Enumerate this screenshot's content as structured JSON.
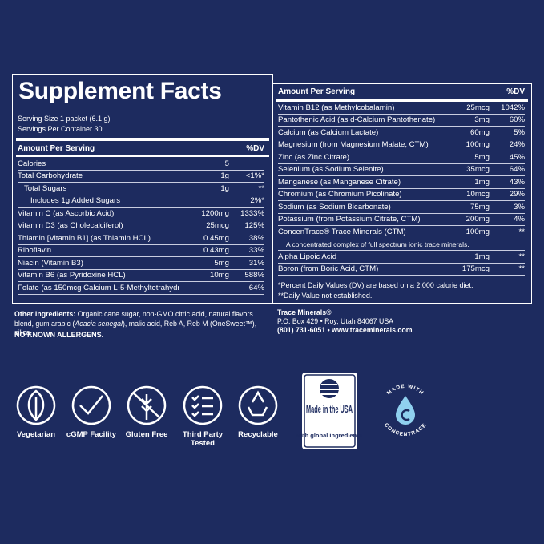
{
  "left": {
    "title": "Supplement Facts",
    "serving_size": "Serving Size 1 packet (6.1 g)",
    "servings": "Servings Per Container 30",
    "header": {
      "amount": "Amount Per Serving",
      "dv": "%DV"
    },
    "rows": [
      {
        "name": "Calories",
        "amount": "5"
      },
      {
        "name": "Total Carbohydrate",
        "amount": "1g",
        "dv": "<1%*"
      },
      {
        "name": "Total Sugars",
        "amount": "1g",
        "dv": "**"
      },
      {
        "name": "Includes 1g Added Sugars",
        "dv": "2%*"
      },
      {
        "name": "Vitamin C (as Ascorbic Acid)",
        "amount": "1200mg",
        "dv": "1333%"
      },
      {
        "name": "Vitamin D3 (as Cholecalciferol)",
        "amount": "25mcg",
        "dv": "125%"
      },
      {
        "name": "Thiamin [Vitamin B1] (as Thiamin HCL)",
        "amount": "0.45mg",
        "dv": "38%"
      },
      {
        "name": "Riboflavin",
        "amount": "0.43mg",
        "dv": "33%"
      },
      {
        "name": "Niacin (Vitamin B3)",
        "amount": "5mg",
        "dv": "31%"
      },
      {
        "name": "Vitamin B6 (as Pyridoxine HCL)",
        "amount": "10mg",
        "dv": "588%"
      },
      {
        "name": "Folate (as 150mcg Calcium L-5-Methyltetrahydrofolate) 255mcg DFE",
        "dv": "64%"
      }
    ]
  },
  "right": {
    "header": {
      "amount": "Amount Per Serving",
      "dv": "%DV"
    },
    "rows": [
      {
        "name": "Vitamin B12 (as Methylcobalamin)",
        "amount": "25mcg",
        "dv": "1042%"
      },
      {
        "name": "Pantothenic Acid (as d-Calcium Pantothenate)",
        "amount": "3mg",
        "dv": "60%"
      },
      {
        "name": "Calcium (as Calcium Lactate)",
        "amount": "60mg",
        "dv": "5%"
      },
      {
        "name": "Magnesium (from Magnesium Malate, CTM)",
        "amount": "100mg",
        "dv": "24%"
      },
      {
        "name": "Zinc (as Zinc Citrate)",
        "amount": "5mg",
        "dv": "45%"
      },
      {
        "name": "Selenium (as Sodium Selenite)",
        "amount": "35mcg",
        "dv": "64%"
      },
      {
        "name": "Manganese (as Manganese Citrate)",
        "amount": "1mg",
        "dv": "43%"
      },
      {
        "name": "Chromium (as Chromium Picolinate)",
        "amount": "10mcg",
        "dv": "29%"
      },
      {
        "name": "Sodium (as Sodium Bicarbonate)",
        "amount": "75mg",
        "dv": "3%"
      },
      {
        "name": "Potassium (from Potassium Citrate, CTM)",
        "amount": "200mg",
        "dv": "4%"
      },
      {
        "name": "ConcenTrace® Trace Minerals (CTM)",
        "amount": "100mg",
        "dv": "**",
        "note": "A concentrated complex of full spectrum ionic trace minerals."
      },
      {
        "name": "Alpha Lipoic Acid",
        "amount": "1mg",
        "dv": "**"
      },
      {
        "name": "Boron (from Boric Acid, CTM)",
        "amount": "175mcg",
        "dv": "**"
      }
    ],
    "footnotes": [
      "*Percent Daily Values (DV) are based on a 2,000 calorie diet.",
      "**Daily Value not established."
    ]
  },
  "ingredients": {
    "label": "Other ingredients:",
    "text": "Organic cane sugar, non-GMO citric acid, natural flavors blend, gum arabic (",
    "italic": "Acacia senegal",
    "text_end": "), malic acid, Reb A, Reb M (OneSweet™), silica.",
    "allergens": "NO KNOWN ALLERGENS."
  },
  "company": {
    "name": "Trace Minerals®",
    "address": "P.O. Box 429 • Roy, Utah 84067 USA",
    "contact": "(801) 731-6051 • www.traceminerals.com"
  },
  "badges": [
    "Vegetarian",
    "cGMP Facility",
    "Gluten Free",
    "Third Party Tested",
    "Recyclable"
  ],
  "usa_badge": {
    "title": "Made in the USA",
    "subtitle": "with global ingredients"
  },
  "concentrace_badge": {
    "top": "MADE WITH",
    "bottom": "CONCENTRACE"
  }
}
